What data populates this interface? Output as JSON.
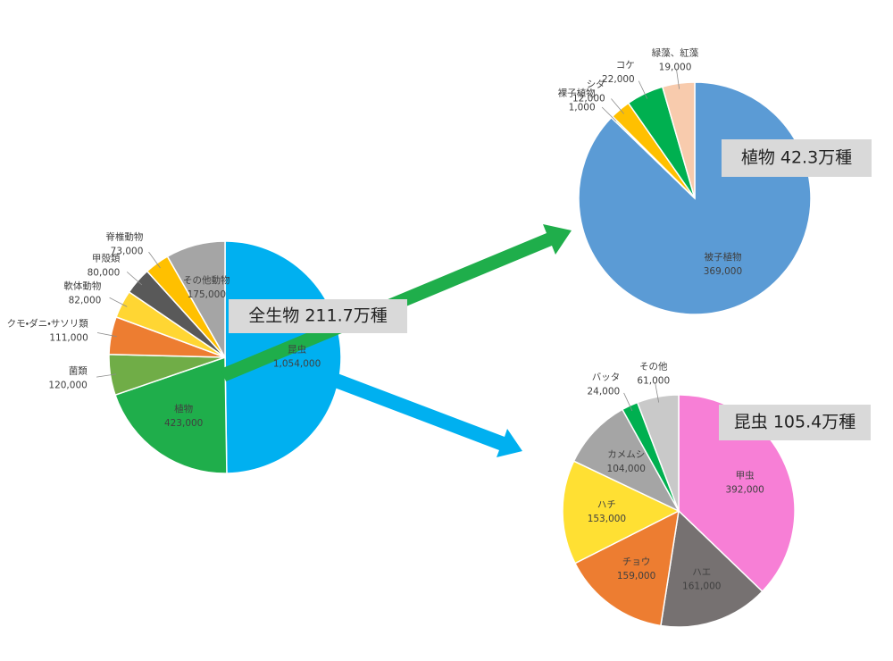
{
  "chart_data": [
    {
      "type": "pie",
      "title": "全生物 211.7万種",
      "categories": [
        "昆虫",
        "植物",
        "菌類",
        "クモ・ダニ・サソリ類",
        "軟体動物",
        "甲殻類",
        "脊椎動物",
        "その他動物"
      ],
      "values": [
        1054000,
        423000,
        120000,
        111000,
        82000,
        80000,
        73000,
        175000
      ],
      "value_labels": [
        "1,054,000",
        "423,000",
        "120,000",
        "111,000",
        "82,000",
        "80,000",
        "73,000",
        "175,000"
      ],
      "colors": [
        "#00b0f0",
        "#1fae4b",
        "#70ad47",
        "#ed7d31",
        "#ffd633",
        "#595959",
        "#ffc000",
        "#a5a5a5"
      ]
    },
    {
      "type": "pie",
      "title": "植物 42.3万種",
      "categories": [
        "被子植物",
        "裸子植物",
        "シダ",
        "コケ",
        "緑藻、紅藻"
      ],
      "values": [
        369000,
        1000,
        12000,
        22000,
        19000
      ],
      "value_labels": [
        "369,000",
        "1,000",
        "12,000",
        "22,000",
        "19,000"
      ],
      "colors": [
        "#5b9bd5",
        "#8fbc5a",
        "#ffc000",
        "#00b050",
        "#f8cbad"
      ]
    },
    {
      "type": "pie",
      "title": "昆虫 105.4万種",
      "categories": [
        "甲虫",
        "ハエ",
        "チョウ",
        "ハチ",
        "カメムシ",
        "バッタ",
        "その他"
      ],
      "values": [
        392000,
        161000,
        159000,
        153000,
        104000,
        24000,
        61000
      ],
      "value_labels": [
        "392,000",
        "161,000",
        "159,000",
        "153,000",
        "104,000",
        "24,000",
        "61,000"
      ],
      "colors": [
        "#f77fd6",
        "#767171",
        "#ed7d31",
        "#ffe033",
        "#a5a5a5",
        "#00b050",
        "#c9c9c9"
      ]
    }
  ]
}
